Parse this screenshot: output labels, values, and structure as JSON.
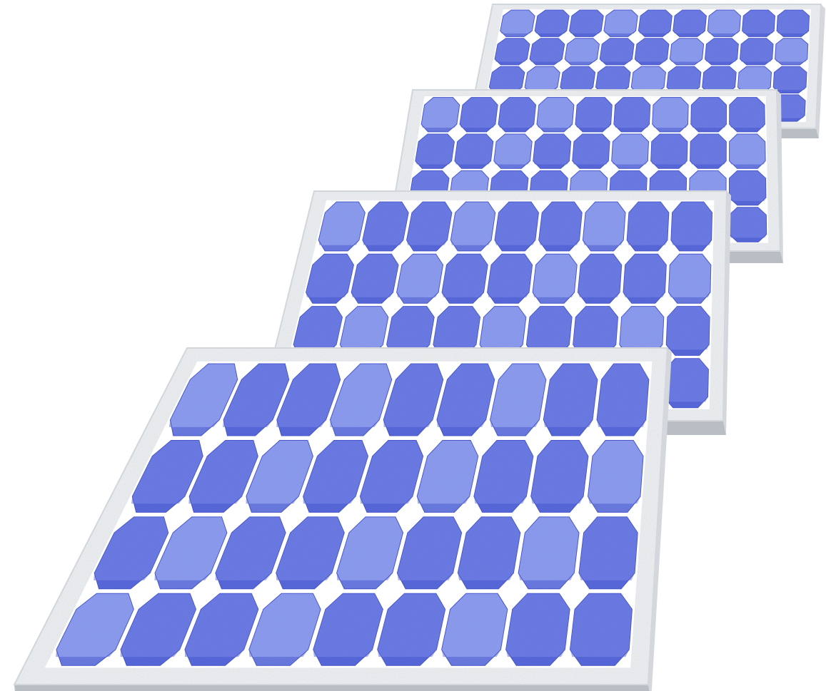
{
  "illustration": {
    "panel_count": 4,
    "panels": [
      {
        "id": "panel-back",
        "rows": 4,
        "cols": 9
      },
      {
        "id": "panel-mid-back",
        "rows": 4,
        "cols": 9
      },
      {
        "id": "panel-mid-front",
        "rows": 4,
        "cols": 9
      },
      {
        "id": "panel-front",
        "rows": 4,
        "cols": 9
      }
    ],
    "colors": {
      "background": "#ffffff",
      "frame_light": "#eef0f2",
      "frame_mid": "#d4d8dc",
      "frame_dark": "#b9bec4",
      "cell_light": "#8e9ef0",
      "cell_mid": "#6272e2",
      "cell_dark": "#3f4fc9",
      "gap": "#ffffff"
    }
  }
}
